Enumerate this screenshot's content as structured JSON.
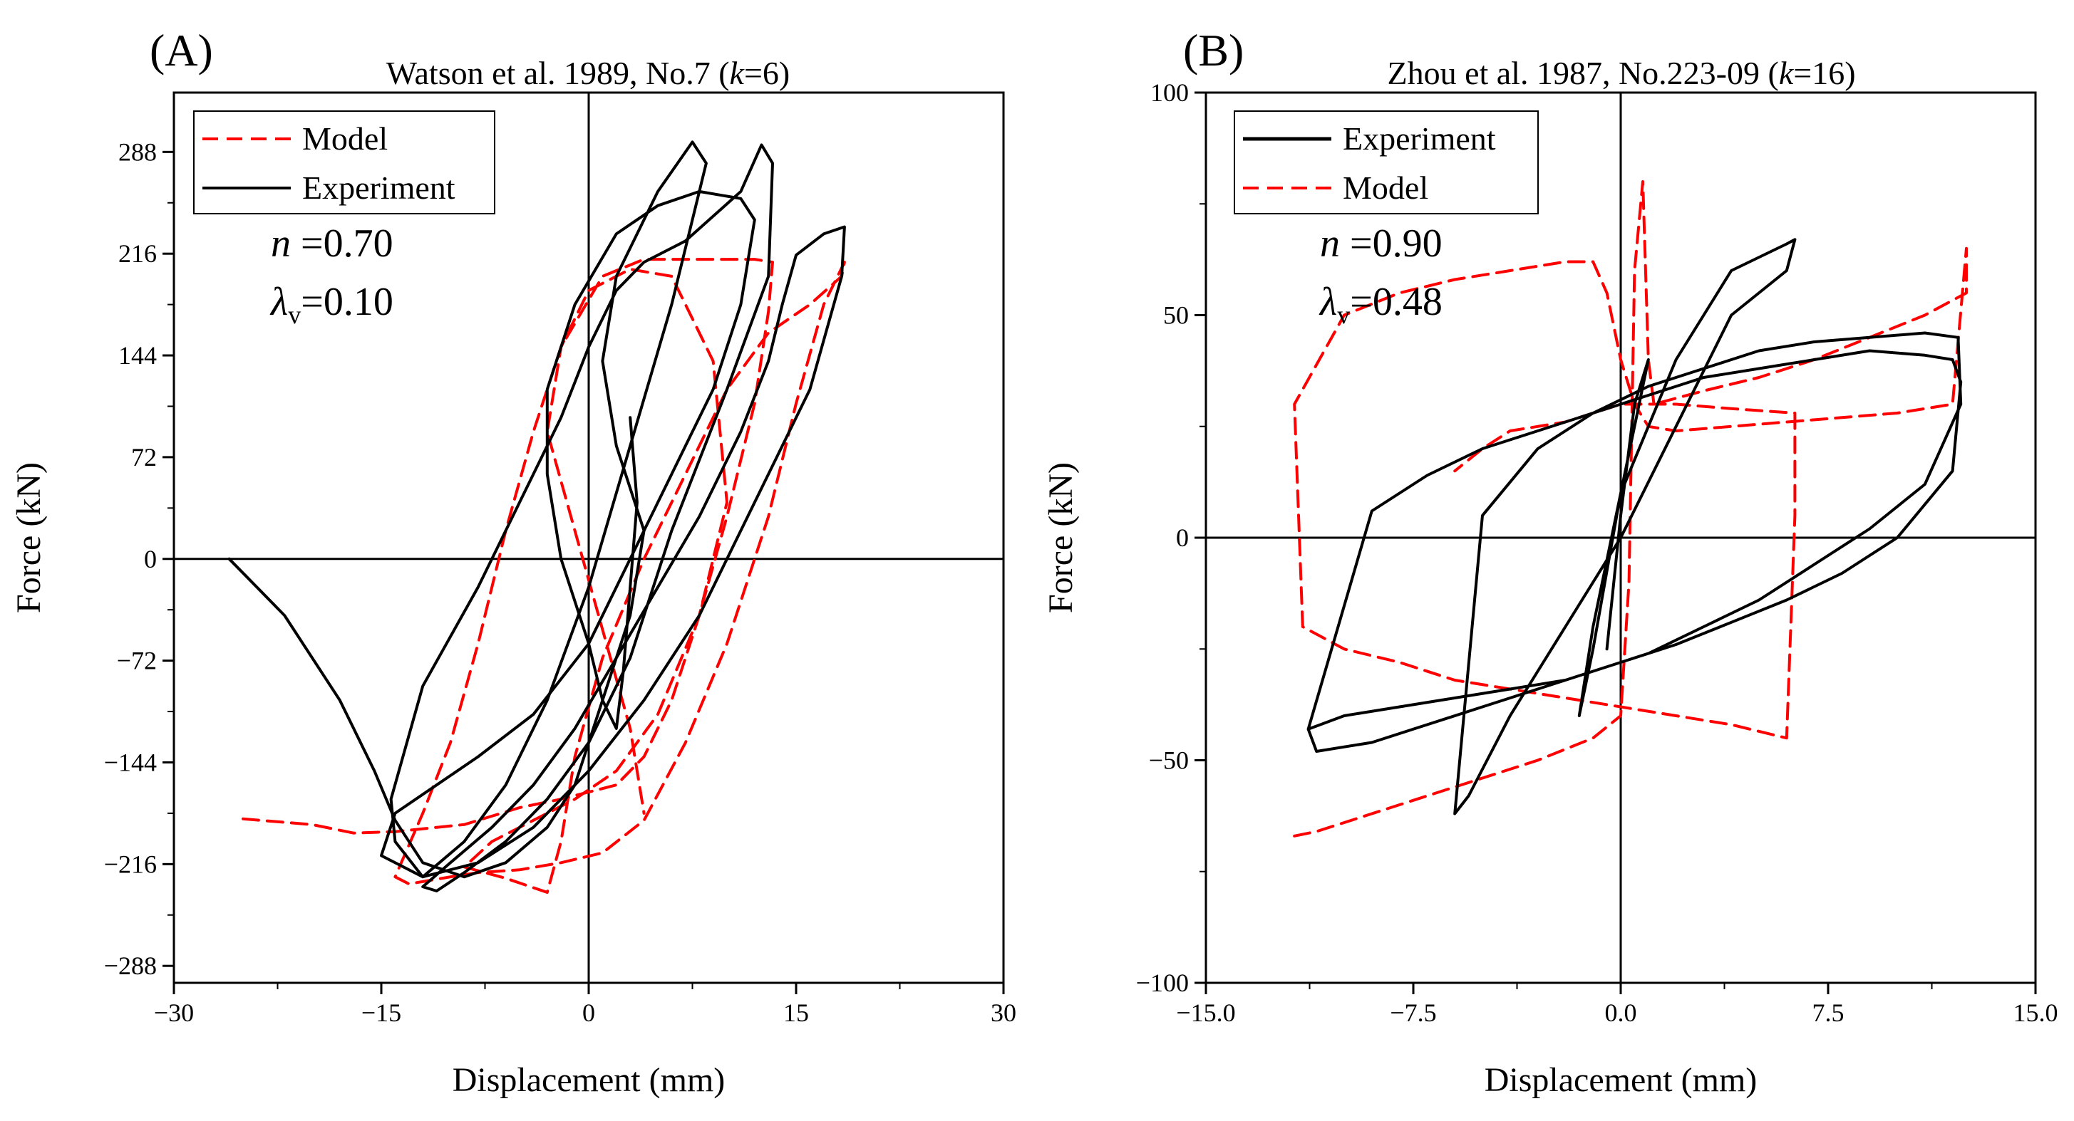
{
  "chart_data": [
    {
      "type": "line",
      "panel_letter": "(A)",
      "title_prefix": "Watson et al. 1989, No.7 (",
      "title_italic": "k",
      "title_suffix": "=6)",
      "xlabel": "Displacement (mm)",
      "ylabel": "Force (kN)",
      "xlim": [
        -30,
        30
      ],
      "ylim": [
        -300,
        330
      ],
      "xticks": [
        -30,
        -15,
        0,
        15,
        30
      ],
      "xtick_labels": [
        "−30",
        "−15",
        "0",
        "15",
        "30"
      ],
      "yticks": [
        288,
        216,
        144,
        72,
        0,
        -72,
        -144,
        -216,
        -288
      ],
      "ytick_labels": [
        "288",
        "216",
        "144",
        "72",
        "0",
        "−72",
        "−144",
        "−216",
        "−288"
      ],
      "legend": {
        "position": "top-left",
        "entries": [
          "Model",
          "Experiment"
        ]
      },
      "annotations": {
        "n_sym": "n",
        "n_val": " =0.70",
        "lam_sym": "λ",
        "lam_sub": "v",
        "lam_val": "=0.10"
      },
      "colors": {
        "Model": "#ff0000",
        "Experiment": "#000000"
      },
      "series": [
        {
          "name": "Experiment",
          "style": "solid",
          "color": "#000000",
          "x": [
            -26,
            -22,
            -18,
            -15.5,
            -14,
            -12,
            -9,
            -6,
            -3,
            -1,
            1,
            3,
            4,
            2,
            1,
            2,
            5,
            7.5,
            8.5,
            6,
            3,
            0,
            -3,
            -6,
            -9,
            -12,
            -14,
            -14.3,
            -12,
            -8,
            -5,
            -2,
            0,
            2,
            4,
            7,
            11,
            12.5,
            13.3,
            13,
            10,
            6,
            3,
            0,
            -3,
            -6,
            -9,
            -11,
            -12,
            -10,
            -7,
            -4,
            -1,
            2,
            5,
            8,
            11,
            13,
            14,
            15,
            17,
            18.5,
            18.3,
            16,
            12,
            8,
            4,
            0,
            -4,
            -8,
            -12,
            -15,
            -14,
            -11,
            -8,
            -4,
            0,
            3,
            6,
            9,
            11,
            12,
            11,
            8,
            5,
            2,
            -1,
            -3,
            -3,
            -2,
            0,
            1,
            2,
            2.5,
            3,
            3.5,
            3
          ],
          "y": [
            0,
            -40,
            -100,
            -150,
            -185,
            -215,
            -225,
            -215,
            -190,
            -160,
            -100,
            -40,
            20,
            80,
            140,
            200,
            260,
            295,
            280,
            180,
            80,
            -20,
            -100,
            -160,
            -200,
            -225,
            -200,
            -170,
            -90,
            -20,
            40,
            100,
            150,
            190,
            210,
            225,
            260,
            293,
            280,
            200,
            120,
            20,
            -70,
            -130,
            -170,
            -200,
            -222,
            -235,
            -232,
            -215,
            -190,
            -160,
            -120,
            -70,
            -20,
            30,
            90,
            140,
            180,
            215,
            230,
            235,
            200,
            120,
            40,
            -40,
            -100,
            -150,
            -190,
            -215,
            -225,
            -210,
            -180,
            -160,
            -140,
            -110,
            -60,
            0,
            60,
            120,
            180,
            240,
            255,
            260,
            250,
            230,
            180,
            120,
            60,
            0,
            -60,
            -100,
            -120,
            -80,
            -20,
            40,
            100
          ]
        },
        {
          "name": "Model",
          "style": "dashed",
          "color": "#ff0000",
          "x": [
            -25,
            -20,
            -17,
            -14,
            -11,
            -9,
            -7,
            -5,
            -2,
            0,
            2,
            4,
            6,
            8,
            10,
            12,
            13,
            13.3,
            12,
            10,
            7,
            4,
            1,
            -2,
            -4,
            -6,
            -8,
            -10,
            -12,
            -14,
            -13,
            -10,
            -8,
            -5,
            -2,
            1,
            4,
            7,
            10,
            13,
            15,
            17,
            18.5,
            18.3,
            16,
            13,
            10,
            7,
            4,
            1,
            -1,
            -2,
            -3,
            -6,
            -9,
            -7,
            -4,
            -1,
            2,
            5,
            8,
            10,
            9,
            6,
            3,
            0,
            -2,
            -3,
            -1,
            1,
            3,
            4
          ],
          "y": [
            -184,
            -188,
            -194,
            -193,
            -190,
            -188,
            -182,
            -176,
            -170,
            -165,
            -160,
            -140,
            -100,
            -40,
            30,
            110,
            175,
            210,
            212,
            212,
            212,
            212,
            200,
            150,
            90,
            20,
            -60,
            -130,
            -180,
            -225,
            -230,
            -225,
            -222,
            -220,
            -215,
            -208,
            -185,
            -130,
            -60,
            30,
            110,
            180,
            210,
            200,
            180,
            160,
            120,
            60,
            0,
            -70,
            -140,
            -200,
            -236,
            -226,
            -218,
            -200,
            -185,
            -170,
            -150,
            -110,
            -40,
            40,
            140,
            200,
            205,
            190,
            150,
            90,
            20,
            -50,
            -120,
            -180
          ]
        }
      ]
    },
    {
      "type": "line",
      "panel_letter": "(B)",
      "title_prefix": "Zhou et al. 1987, No.223-09 (",
      "title_italic": "k",
      "title_suffix": "=16)",
      "xlabel": "Displacement (mm)",
      "ylabel": "Force (kN)",
      "xlim": [
        -15,
        15
      ],
      "ylim": [
        -100,
        100
      ],
      "xticks": [
        -15,
        -7.5,
        0,
        7.5,
        15
      ],
      "xtick_labels": [
        "−15.0",
        "−7.5",
        "0.0",
        "7.5",
        "15.0"
      ],
      "yticks": [
        100,
        50,
        0,
        -50,
        -100
      ],
      "ytick_labels": [
        "100",
        "50",
        "0",
        "−50",
        "−100"
      ],
      "legend": {
        "position": "top-left",
        "entries": [
          "Experiment",
          "Model"
        ]
      },
      "annotations": {
        "n_sym": "n",
        "n_val": " =0.90",
        "lam_sym": "λ",
        "lam_sub": "v",
        "lam_val": "=0.48"
      },
      "colors": {
        "Model": "#ff0000",
        "Experiment": "#000000"
      },
      "series": [
        {
          "name": "Experiment",
          "style": "solid",
          "color": "#000000",
          "x": [
            -11.3,
            -10,
            -8,
            -6,
            -4,
            -2,
            0,
            2,
            4,
            6,
            8,
            10,
            12,
            12.3,
            12,
            11,
            9,
            7,
            5,
            3,
            1,
            -1,
            -3,
            -5,
            -7,
            -9,
            -11.3,
            -11,
            -9,
            -7,
            -5,
            -3,
            -1,
            1,
            3,
            5,
            7,
            9,
            11,
            12.3,
            12.2,
            11,
            9,
            7,
            5,
            3,
            1,
            -1,
            -3,
            -5,
            -6,
            -5.5,
            -4,
            -2,
            0,
            2,
            4,
            6,
            6.3,
            6,
            4,
            2,
            0,
            -1,
            -1.5,
            -1,
            0,
            1,
            0.5,
            0,
            -0.5
          ],
          "y": [
            -43,
            -40,
            -38,
            -36,
            -34,
            -32,
            -28,
            -24,
            -19,
            -14,
            -8,
            0,
            15,
            35,
            40,
            41,
            42,
            40,
            38,
            36,
            32,
            28,
            24,
            20,
            14,
            6,
            -43,
            -48,
            -46,
            -42,
            -38,
            -34,
            -30,
            -26,
            -20,
            -14,
            -6,
            2,
            12,
            30,
            45,
            46,
            45,
            44,
            42,
            38,
            34,
            28,
            20,
            5,
            -62,
            -58,
            -40,
            -20,
            0,
            25,
            50,
            60,
            67,
            66,
            60,
            40,
            10,
            -25,
            -40,
            -20,
            10,
            40,
            30,
            5,
            -25
          ]
        },
        {
          "name": "Model",
          "style": "dashed",
          "color": "#ff0000",
          "x": [
            -11.8,
            -11,
            -9,
            -7,
            -5,
            -3,
            -1,
            0,
            0.3,
            0.5,
            0.8,
            1,
            1.2,
            3,
            5,
            7,
            9,
            11,
            12.5,
            12.5,
            12,
            10,
            8,
            6,
            4,
            2,
            1,
            0.5,
            0,
            -0.5,
            -1,
            -2,
            -4,
            -6,
            -8,
            -10,
            -11.8,
            -11.5,
            -10,
            -8,
            -6,
            -4,
            -2,
            0,
            2,
            4,
            6,
            6.3,
            6.3,
            4,
            2,
            1,
            0,
            -1,
            -2,
            -3,
            -4,
            -5,
            -6
          ],
          "y": [
            -67,
            -66,
            -62,
            -58,
            -54,
            -50,
            -45,
            -40,
            -10,
            60,
            80,
            40,
            30,
            33,
            36,
            40,
            45,
            50,
            55,
            65,
            30,
            28,
            27,
            26,
            25,
            24,
            25,
            30,
            40,
            55,
            62,
            62,
            60,
            58,
            55,
            50,
            30,
            -20,
            -25,
            -28,
            -32,
            -34,
            -36,
            -38,
            -40,
            -42,
            -45,
            5,
            28,
            29,
            30,
            30,
            30,
            28,
            26,
            25,
            24,
            20,
            15
          ]
        }
      ]
    }
  ]
}
